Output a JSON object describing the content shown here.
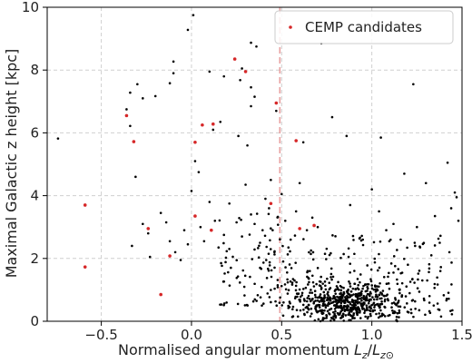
{
  "chart_data": {
    "type": "scatter",
    "xlabel": "Normalised angular momentum L_z/L_z⊙",
    "xlabel_main": "Normalised angular momentum ",
    "xlabel_var": "L",
    "xlabel_sub1": "z",
    "xlabel_slash": "/",
    "xlabel_var2": "L",
    "xlabel_sub2": "z⊙",
    "ylabel": "Maximal Galactic z height [kpc]",
    "xlim": [
      -0.8,
      1.5
    ],
    "ylim": [
      0,
      10
    ],
    "xticks": [
      -0.5,
      0.0,
      0.5,
      1.0,
      1.5
    ],
    "xtick_labels": [
      "−0.5",
      "0.0",
      "0.5",
      "1.0",
      "1.5"
    ],
    "yticks": [
      0,
      2,
      4,
      6,
      8,
      10
    ],
    "ytick_labels": [
      "0",
      "2",
      "4",
      "6",
      "8",
      "10"
    ],
    "grid": true,
    "grid_style": "dashed",
    "legend_position": "top-right",
    "vline": {
      "x": 0.49,
      "style": "dashed",
      "color": "#e8a0a0"
    },
    "series": [
      {
        "name": "",
        "color": "#000000",
        "points": [
          [
            -0.74,
            5.82
          ],
          [
            0.01,
            9.75
          ],
          [
            -0.02,
            9.28
          ],
          [
            -0.1,
            8.27
          ],
          [
            -0.1,
            7.9
          ],
          [
            -0.3,
            7.55
          ],
          [
            -0.34,
            7.28
          ],
          [
            -0.27,
            7.1
          ],
          [
            -0.2,
            7.17
          ],
          [
            -0.12,
            7.58
          ],
          [
            0.1,
            7.95
          ],
          [
            0.18,
            7.8
          ],
          [
            0.28,
            8.05
          ],
          [
            0.33,
            8.87
          ],
          [
            0.36,
            8.75
          ],
          [
            0.27,
            7.68
          ],
          [
            0.33,
            7.45
          ],
          [
            0.35,
            7.15
          ],
          [
            0.33,
            6.85
          ],
          [
            -0.36,
            6.75
          ],
          [
            -0.34,
            6.22
          ],
          [
            -0.31,
            4.6
          ],
          [
            -0.33,
            2.4
          ],
          [
            -0.27,
            3.1
          ],
          [
            -0.24,
            2.8
          ],
          [
            -0.23,
            2.05
          ],
          [
            -0.17,
            3.45
          ],
          [
            -0.14,
            3.15
          ],
          [
            -0.12,
            2.55
          ],
          [
            -0.09,
            2.2
          ],
          [
            -0.06,
            1.95
          ],
          [
            -0.04,
            2.9
          ],
          [
            -0.02,
            2.45
          ],
          [
            0.0,
            4.15
          ],
          [
            0.02,
            5.1
          ],
          [
            0.04,
            4.75
          ],
          [
            0.05,
            3.0
          ],
          [
            0.07,
            2.55
          ],
          [
            0.1,
            3.8
          ],
          [
            0.13,
            3.2
          ],
          [
            0.15,
            2.35
          ],
          [
            0.18,
            2.75
          ],
          [
            0.21,
            3.75
          ],
          [
            0.25,
            3.15
          ],
          [
            0.28,
            2.7
          ],
          [
            0.3,
            4.35
          ],
          [
            0.31,
            5.6
          ],
          [
            0.33,
            3.4
          ],
          [
            0.35,
            3.1
          ],
          [
            0.38,
            2.5
          ],
          [
            0.41,
            3.9
          ],
          [
            0.43,
            3.6
          ],
          [
            0.45,
            2.9
          ],
          [
            0.46,
            2.2
          ],
          [
            0.47,
            6.7
          ],
          [
            0.44,
            4.5
          ],
          [
            0.16,
            6.35
          ],
          [
            0.12,
            6.1
          ],
          [
            0.26,
            5.9
          ],
          [
            0.5,
            4.05
          ],
          [
            0.52,
            3.2
          ],
          [
            0.55,
            2.6
          ],
          [
            0.58,
            3.5
          ],
          [
            0.6,
            4.4
          ],
          [
            0.62,
            5.7
          ],
          [
            0.64,
            2.9
          ],
          [
            0.67,
            3.3
          ],
          [
            0.7,
            3.0
          ],
          [
            0.72,
            8.85
          ],
          [
            0.78,
            6.5
          ],
          [
            0.86,
            5.9
          ],
          [
            0.88,
            3.7
          ],
          [
            0.95,
            2.6
          ],
          [
            1.0,
            4.2
          ],
          [
            1.04,
            3.5
          ],
          [
            1.05,
            5.85
          ],
          [
            1.08,
            2.9
          ],
          [
            1.12,
            3.1
          ],
          [
            1.18,
            4.7
          ],
          [
            1.23,
            7.55
          ],
          [
            1.25,
            3.0
          ],
          [
            1.3,
            4.4
          ],
          [
            1.35,
            3.35
          ],
          [
            1.42,
            5.05
          ],
          [
            1.44,
            3.6
          ],
          [
            1.46,
            4.1
          ],
          [
            1.47,
            3.95
          ],
          [
            1.48,
            3.2
          ],
          [
            1.43,
            2.2
          ],
          [
            1.38,
            1.6
          ],
          [
            1.33,
            2.1
          ],
          [
            1.28,
            1.3
          ],
          [
            1.24,
            2.4
          ],
          [
            1.2,
            1.8
          ],
          [
            1.16,
            2.6
          ],
          [
            1.12,
            1.55
          ]
        ]
      },
      {
        "name": "CEMP candidates",
        "color": "#d62728",
        "points": [
          [
            -0.59,
            3.7
          ],
          [
            -0.59,
            1.73
          ],
          [
            -0.36,
            6.55
          ],
          [
            -0.32,
            5.72
          ],
          [
            -0.24,
            2.95
          ],
          [
            -0.17,
            0.85
          ],
          [
            -0.12,
            2.08
          ],
          [
            0.02,
            5.7
          ],
          [
            0.06,
            6.25
          ],
          [
            0.12,
            6.28
          ],
          [
            0.11,
            2.9
          ],
          [
            0.02,
            3.35
          ],
          [
            0.24,
            8.35
          ],
          [
            0.3,
            7.95
          ],
          [
            0.47,
            6.95
          ],
          [
            0.44,
            3.75
          ],
          [
            0.58,
            5.75
          ],
          [
            0.68,
            3.05
          ],
          [
            0.6,
            2.95
          ]
        ]
      }
    ]
  }
}
